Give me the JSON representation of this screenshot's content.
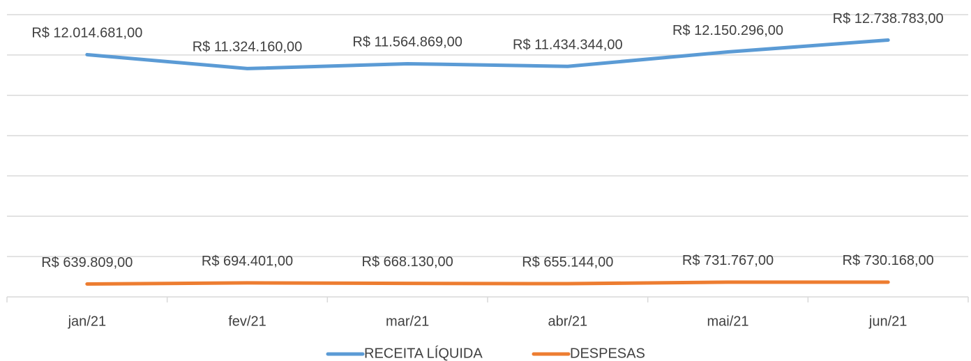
{
  "chart_data": {
    "type": "line",
    "categories": [
      "jan/21",
      "fev/21",
      "mar/21",
      "abr/21",
      "mai/21",
      "jun/21"
    ],
    "series": [
      {
        "name": "RECEITA LÍQUIDA",
        "color": "#5b9bd5",
        "values": [
          12014681,
          11324160,
          11564869,
          11434344,
          12150296,
          12738783
        ],
        "value_labels": [
          "R$ 12.014.681,00",
          "R$ 11.324.160,00",
          "R$ 11.564.869,00",
          "R$ 11.434.344,00",
          "R$ 12.150.296,00",
          "R$ 12.738.783,00"
        ]
      },
      {
        "name": "DESPESAS",
        "color": "#ed7d31",
        "values": [
          639809,
          694401,
          668130,
          655144,
          731767,
          730168
        ],
        "value_labels": [
          "R$ 639.809,00",
          "R$ 694.401,00",
          "R$ 668.130,00",
          "R$ 655.144,00",
          "R$ 731.767,00",
          "R$ 730.168,00"
        ]
      }
    ],
    "ylim": [
      0,
      14000000
    ],
    "yticks": [
      0,
      2000000,
      4000000,
      6000000,
      8000000,
      10000000,
      12000000,
      14000000
    ],
    "grid": true,
    "legend": "bottom"
  }
}
